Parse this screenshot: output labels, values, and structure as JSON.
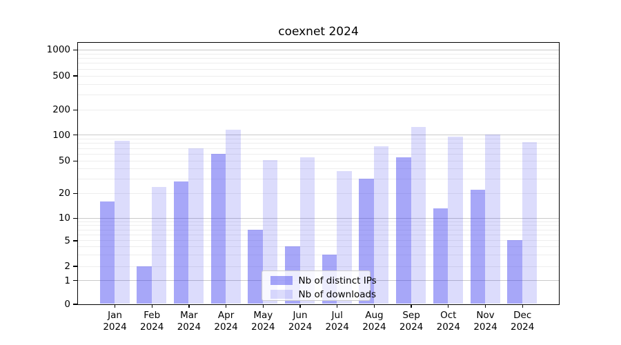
{
  "figure": {
    "title": "coexnet 2024"
  },
  "chart_data": {
    "type": "bar",
    "title": "coexnet 2024",
    "categories": [
      "Jan",
      "Feb",
      "Mar",
      "Apr",
      "May",
      "Jun",
      "Jul",
      "Aug",
      "Sep",
      "Oct",
      "Nov",
      "Dec"
    ],
    "category_year": "2024",
    "series": [
      {
        "name": "Nb of distinct IPs",
        "color": "rgba(60,60,240,0.45)",
        "values": [
          16,
          2,
          28,
          60,
          7,
          4,
          3,
          30,
          55,
          13,
          22,
          5
        ]
      },
      {
        "name": "Nb of downloads",
        "color": "rgba(60,60,240,0.18)",
        "values": [
          85,
          24,
          70,
          115,
          51,
          55,
          37,
          73,
          125,
          95,
          100,
          82
        ]
      }
    ],
    "y_axis": {
      "scale": "symlog",
      "tick_values": [
        0,
        1,
        2,
        5,
        10,
        20,
        50,
        100,
        200,
        500,
        1000
      ],
      "tick_labels": [
        "0",
        "1",
        "2",
        "5",
        "10",
        "20",
        "50",
        "100",
        "200",
        "500",
        "1000"
      ]
    },
    "x_axis": {
      "label_format": "month over year"
    },
    "legend": {
      "position": "lower center"
    },
    "grid": {
      "major_color": "#c9c9c9",
      "minor_color": "#ededed"
    },
    "ylim": [
      0,
      1200
    ]
  }
}
